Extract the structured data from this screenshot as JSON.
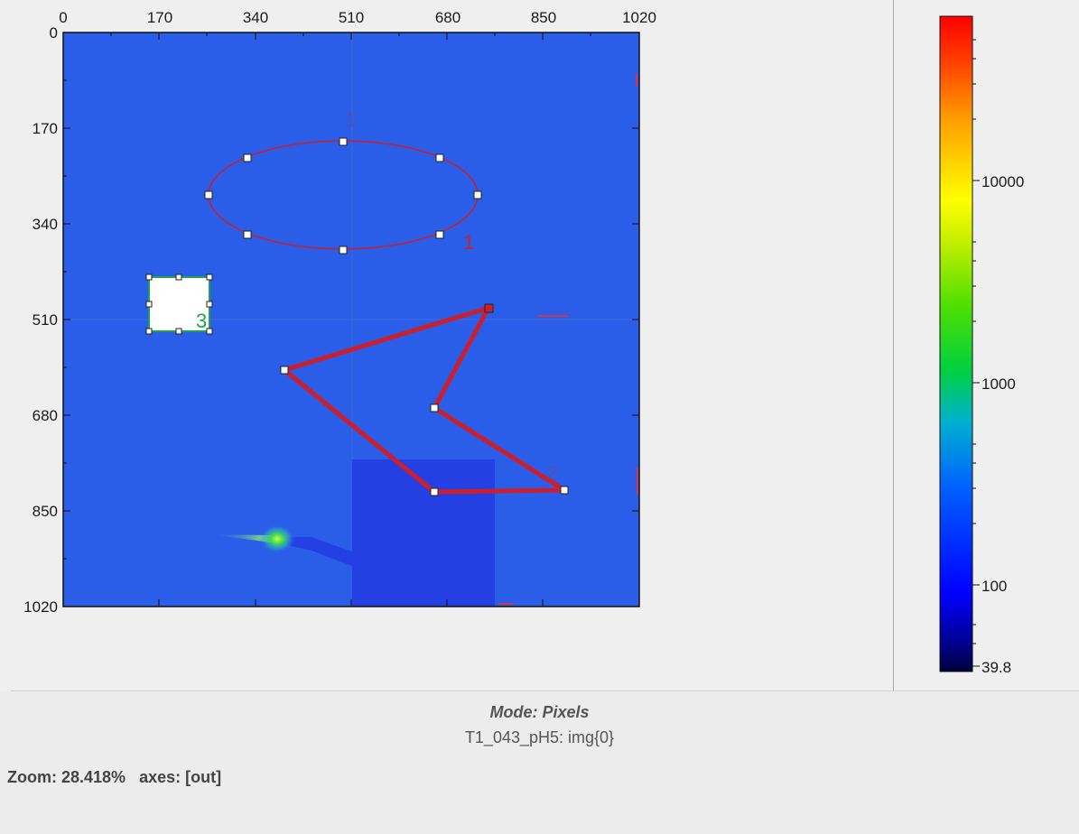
{
  "image_view": {
    "x_ticks": [
      "0",
      "170",
      "340",
      "510",
      "680",
      "850",
      "1020"
    ],
    "y_ticks": [
      "0",
      "170",
      "340",
      "510",
      "680",
      "850",
      "1020"
    ],
    "background_color": "#2a5de8",
    "roi_color": "#cc1f2b",
    "mask_color": "#1fa34a",
    "rois": [
      {
        "shape": "ellipse",
        "label": "1"
      },
      {
        "shape": "polyline",
        "label": "2"
      },
      {
        "shape": "rectangle",
        "label": "3"
      }
    ]
  },
  "colorbar": {
    "labels": [
      "10000",
      "1000",
      "100",
      "39.8"
    ],
    "scale": "log",
    "colormap": "jet"
  },
  "status": {
    "mode": "Mode: Pixels",
    "image_name": "T1_043_pH5: img{0}",
    "zoom": "Zoom: 28.418%",
    "axes": "axes: [out]"
  }
}
